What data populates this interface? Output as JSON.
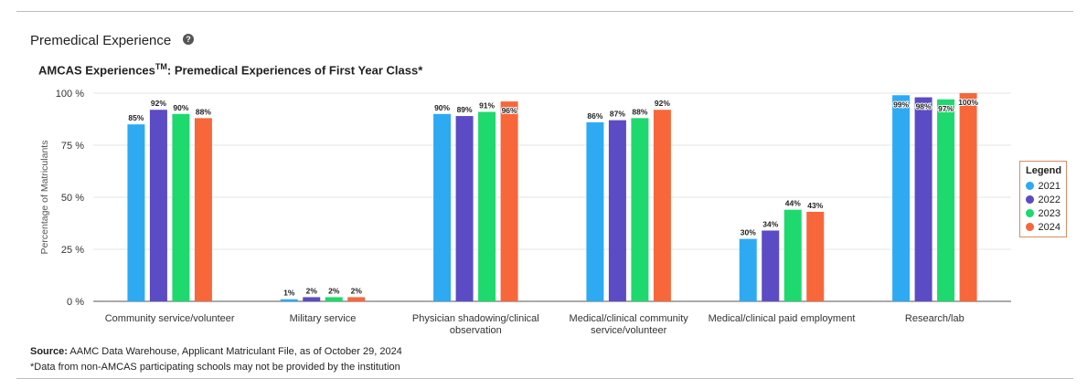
{
  "section": {
    "title": "Premedical Experience",
    "help_icon": "question-circle-icon"
  },
  "chart_data": {
    "type": "bar",
    "title": "AMCAS Experiences",
    "title_superscript": "TM",
    "title_rest": ": Premedical Experiences of First Year Class*",
    "ylabel": "Percentage of Matriculants",
    "ylim": [
      0,
      100
    ],
    "yticks": [
      "0 %",
      "25 %",
      "50 %",
      "75 %",
      "100 %"
    ],
    "ytick_values": [
      0,
      25,
      50,
      75,
      100
    ],
    "categories": [
      [
        "Community service/volunteer"
      ],
      [
        "Military service"
      ],
      [
        "Physician shadowing/clinical",
        "observation"
      ],
      [
        "Medical/clinical community",
        "service/volunteer"
      ],
      [
        "Medical/clinical paid employment"
      ],
      [
        "Research/lab"
      ]
    ],
    "series": [
      {
        "name": "2021",
        "color": "#2eaaf3",
        "values": [
          85,
          1,
          90,
          86,
          30,
          99
        ],
        "labels": [
          "85%",
          "1%",
          "90%",
          "86%",
          "30%",
          "99%"
        ]
      },
      {
        "name": "2022",
        "color": "#5b4bc4",
        "values": [
          92,
          2,
          89,
          87,
          34,
          98
        ],
        "labels": [
          "92%",
          "2%",
          "89%",
          "87%",
          "34%",
          "98%"
        ]
      },
      {
        "name": "2023",
        "color": "#1ed96e",
        "values": [
          90,
          2,
          91,
          88,
          44,
          97
        ],
        "labels": [
          "90%",
          "2%",
          "91%",
          "88%",
          "44%",
          "97%"
        ]
      },
      {
        "name": "2024",
        "color": "#f7673a",
        "values": [
          88,
          2,
          96,
          92,
          43,
          100
        ],
        "labels": [
          "88%",
          "2%",
          "96%",
          "92%",
          "43%",
          "100%"
        ]
      }
    ],
    "legend": {
      "title": "Legend",
      "position": "right"
    },
    "grid": true
  },
  "source": {
    "label": "Source:",
    "text": " AAMC Data Warehouse, Applicant Matriculant File, as of October 29, 2024"
  },
  "footnote": "*Data from non-AMCAS participating schools may not be provided by the institution"
}
